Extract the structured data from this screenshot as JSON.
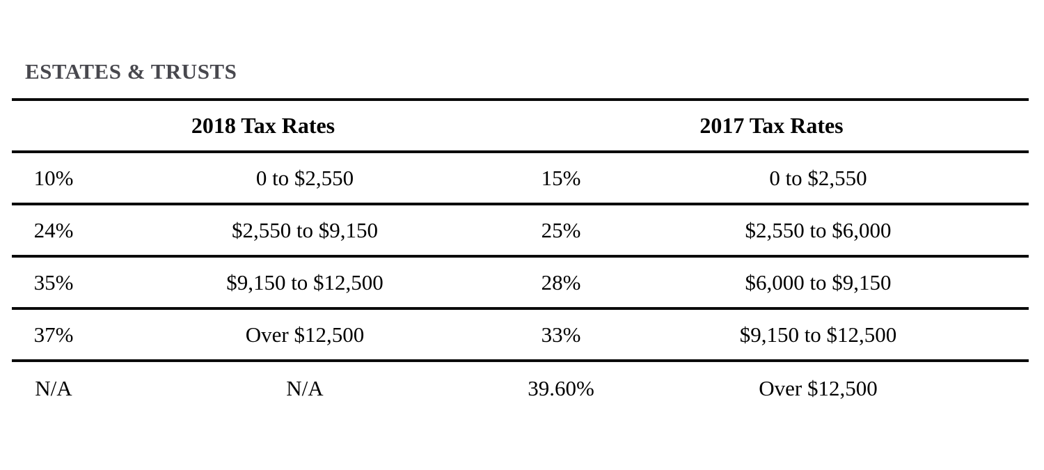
{
  "page": {
    "background_color": "#ffffff",
    "rule_color": "#0b0b0b",
    "title_color": "#48484e"
  },
  "title": "ESTATES & TRUSTS",
  "table": {
    "headers": {
      "rates_2018": "2018 Tax Rates",
      "rates_2017": "2017 Tax Rates"
    },
    "rows": [
      {
        "rate_2018": "10%",
        "bracket_2018": "0 to $2,550",
        "rate_2017": "15%",
        "bracket_2017": "0 to $2,550"
      },
      {
        "rate_2018": "24%",
        "bracket_2018": "$2,550 to $9,150",
        "rate_2017": "25%",
        "bracket_2017": "$2,550 to $6,000"
      },
      {
        "rate_2018": "35%",
        "bracket_2018": "$9,150 to $12,500",
        "rate_2017": "28%",
        "bracket_2017": "$6,000 to $9,150"
      },
      {
        "rate_2018": "37%",
        "bracket_2018": "Over $12,500",
        "rate_2017": "33%",
        "bracket_2017": "$9,150 to $12,500"
      },
      {
        "rate_2018": "N/A",
        "bracket_2018": "N/A",
        "rate_2017": "39.60%",
        "bracket_2017": "Over $12,500"
      }
    ]
  }
}
